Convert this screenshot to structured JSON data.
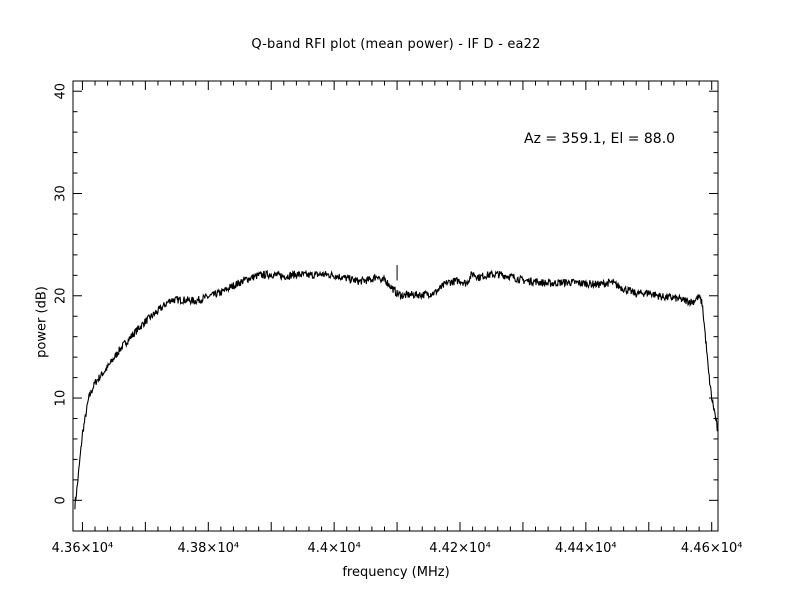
{
  "chart_data": {
    "type": "line",
    "title": "Q-band RFI plot (mean power) - IF D - ea22",
    "xlabel": "frequency (MHz)",
    "ylabel": "power (dB)",
    "annotation": "Az = 359.1, El = 88.0",
    "xlim": [
      43585,
      44610
    ],
    "ylim": [
      -3,
      41
    ],
    "x_ticks": [
      {
        "value": 43600,
        "label": "4.36×10⁴"
      },
      {
        "value": 43800,
        "label": "4.38×10⁴"
      },
      {
        "value": 44000,
        "label": "4.4×10⁴"
      },
      {
        "value": 44200,
        "label": "4.42×10⁴"
      },
      {
        "value": 44400,
        "label": "4.44×10⁴"
      },
      {
        "value": 44600,
        "label": "4.46×10⁴"
      }
    ],
    "y_ticks": [
      0,
      10,
      20,
      30,
      40
    ],
    "grid": false,
    "line_color": "#000000",
    "series": [
      {
        "x": [
          43588,
          43592,
          43600,
          43610,
          43620,
          43640,
          43660,
          43680,
          43700,
          43720,
          43740,
          43760,
          43780,
          43800,
          43820,
          43840,
          43860,
          43880,
          43900,
          43920,
          43940,
          43960,
          43980,
          44000,
          44020,
          44040,
          44060,
          44070,
          44075,
          44080,
          44090,
          44100,
          44110,
          44120,
          44140,
          44160,
          44180,
          44200,
          44210,
          44220,
          44230,
          44240,
          44260,
          44280,
          44300,
          44320,
          44340,
          44360,
          44380,
          44400,
          44420,
          44440,
          44460,
          44480,
          44500,
          44520,
          44540,
          44560,
          44570,
          44575,
          44580,
          44585,
          44590,
          44595,
          44600,
          44605,
          44610
        ],
        "y": [
          -0.5,
          1.5,
          6.5,
          10.0,
          11.5,
          13.0,
          14.8,
          16.2,
          17.5,
          18.5,
          19.6,
          19.6,
          19.5,
          19.9,
          20.3,
          21.0,
          21.6,
          22.0,
          22.1,
          21.9,
          22.1,
          22.0,
          22.1,
          22.0,
          21.7,
          21.4,
          21.6,
          22.0,
          21.3,
          21.6,
          20.9,
          20.2,
          20.0,
          20.1,
          20.1,
          20.3,
          21.3,
          21.5,
          21.2,
          22.2,
          21.8,
          22.0,
          22.1,
          21.9,
          21.5,
          21.4,
          21.2,
          21.3,
          21.3,
          21.2,
          21.1,
          21.3,
          20.7,
          20.2,
          20.3,
          19.9,
          19.8,
          19.5,
          19.4,
          19.7,
          19.9,
          19.2,
          16.0,
          12.5,
          10.0,
          8.5,
          6.5
        ]
      }
    ]
  }
}
